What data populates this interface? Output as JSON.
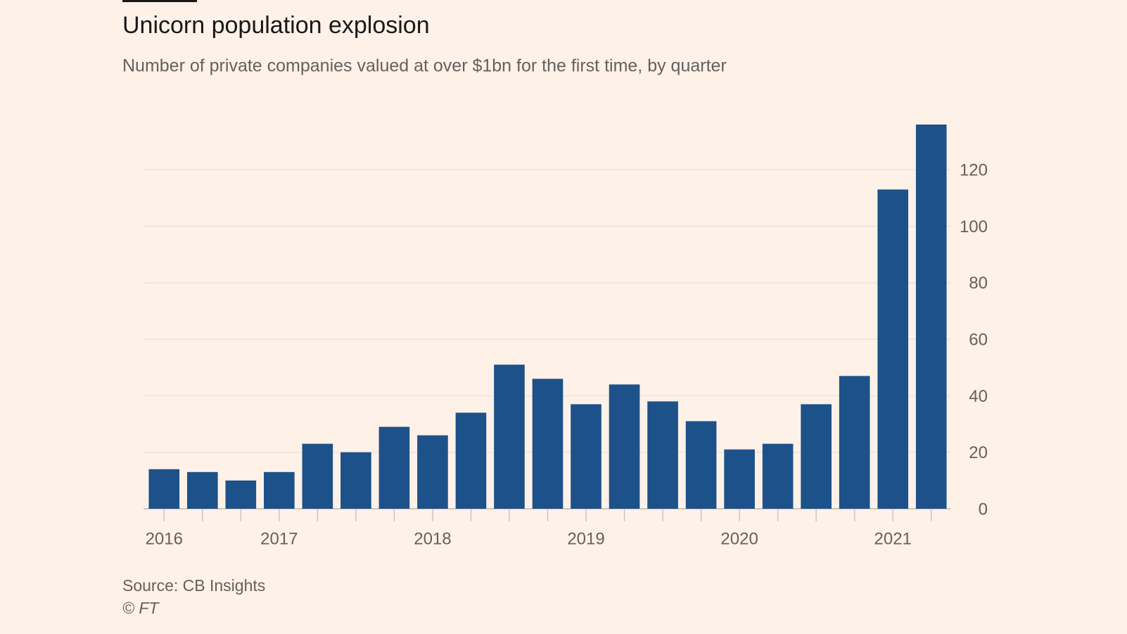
{
  "chart_data": {
    "type": "bar",
    "title": "Unicorn population explosion",
    "subtitle": "Number of private companies valued at over $1bn for the first time, by quarter",
    "source": "Source: CB Insights",
    "copyright": "© FT",
    "categories": [
      "2016",
      null,
      null,
      "2017",
      null,
      null,
      null,
      "2018",
      null,
      null,
      null,
      "2019",
      null,
      null,
      null,
      "2020",
      null,
      null,
      null,
      "2021",
      null
    ],
    "values": [
      14,
      13,
      10,
      13,
      23,
      20,
      29,
      26,
      34,
      51,
      46,
      37,
      44,
      38,
      31,
      21,
      23,
      37,
      47,
      113,
      136
    ],
    "color": "#1d5189",
    "ylim": [
      0,
      136
    ],
    "yticks": [
      0,
      20,
      40,
      60,
      80,
      100,
      120
    ],
    "grid": true
  }
}
